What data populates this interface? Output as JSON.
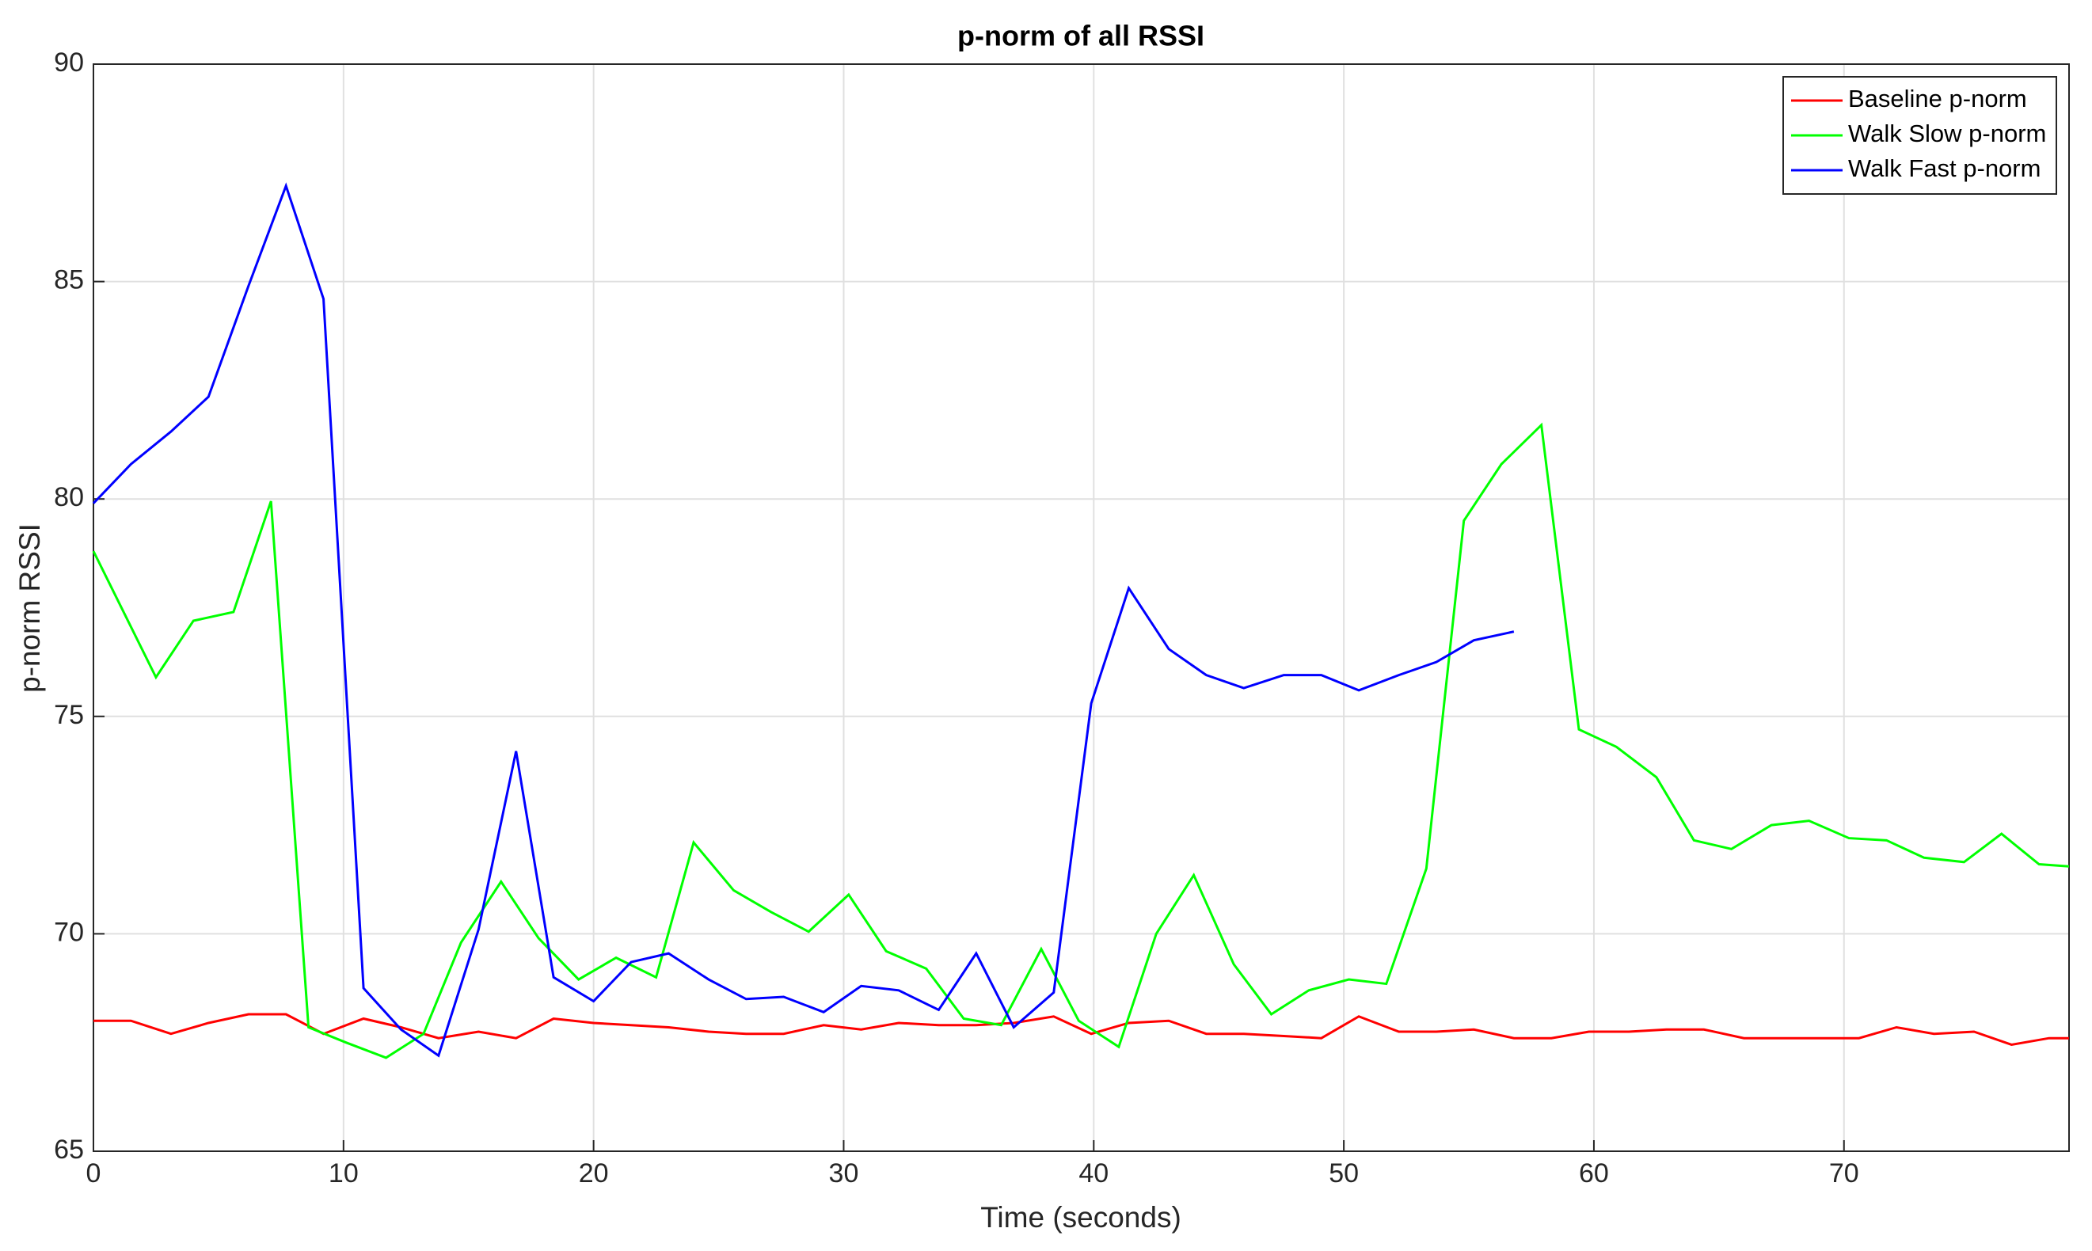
{
  "chart_data": {
    "type": "line",
    "title": "p-norm of all RSSI",
    "x_label": "Time (seconds)",
    "y_label": "p-norm RSSI",
    "xlim": [
      0,
      79
    ],
    "ylim": [
      65,
      90
    ],
    "xticks": [
      0,
      10,
      20,
      30,
      40,
      50,
      60,
      70
    ],
    "yticks": [
      65,
      70,
      75,
      80,
      85,
      90
    ],
    "grid": true,
    "legend": "top-right",
    "series": [
      {
        "name": "Baseline p-norm",
        "color": "#ff0000",
        "x": [
          0,
          1.5,
          3.1,
          4.6,
          6.2,
          7.7,
          9.2,
          10.8,
          12.3,
          13.8,
          15.4,
          16.9,
          18.4,
          20.0,
          21.5,
          23.0,
          24.6,
          26.1,
          27.6,
          29.2,
          30.7,
          32.2,
          33.8,
          35.3,
          36.8,
          38.4,
          39.9,
          41.4,
          43.0,
          44.5,
          46.0,
          47.6,
          49.1,
          50.6,
          52.2,
          53.7,
          55.2,
          56.8,
          58.3,
          59.8,
          61.4,
          62.9,
          64.4,
          66.0,
          67.5,
          69.0,
          70.6,
          72.1,
          73.6,
          75.2,
          76.7,
          78.2,
          79
        ],
        "values": [
          68.0,
          68.0,
          67.7,
          67.95,
          68.15,
          68.15,
          67.7,
          68.05,
          67.85,
          67.6,
          67.75,
          67.6,
          68.05,
          67.95,
          67.9,
          67.85,
          67.75,
          67.7,
          67.7,
          67.9,
          67.8,
          67.95,
          67.9,
          67.9,
          67.95,
          68.1,
          67.7,
          67.95,
          68.0,
          67.7,
          67.7,
          67.65,
          67.6,
          68.1,
          67.75,
          67.75,
          67.8,
          67.6,
          67.6,
          67.75,
          67.75,
          67.8,
          67.8,
          67.6,
          67.6,
          67.6,
          67.6,
          67.85,
          67.7,
          67.75,
          67.45,
          67.6,
          67.6
        ]
      },
      {
        "name": "Walk Slow p-norm",
        "color": "#00ff00",
        "x": [
          0,
          2.5,
          4.0,
          5.6,
          7.1,
          8.6,
          10.1,
          11.7,
          13.2,
          14.7,
          16.3,
          17.8,
          19.4,
          20.9,
          22.5,
          24.0,
          25.6,
          27.1,
          28.6,
          30.2,
          31.7,
          33.3,
          34.8,
          36.3,
          37.9,
          39.4,
          41.0,
          42.5,
          44.0,
          45.6,
          47.1,
          48.6,
          50.2,
          51.7,
          53.3,
          54.8,
          56.3,
          57.9,
          59.4,
          60.9,
          62.5,
          64.0,
          65.5,
          67.1,
          68.6,
          70.2,
          71.7,
          73.2,
          74.8,
          76.3,
          77.8,
          79
        ],
        "values": [
          78.8,
          75.9,
          77.2,
          77.4,
          79.95,
          67.85,
          67.5,
          67.15,
          67.7,
          69.8,
          71.2,
          69.9,
          68.95,
          69.45,
          69.0,
          72.1,
          71.0,
          70.5,
          70.05,
          70.9,
          69.6,
          69.2,
          68.05,
          67.9,
          69.65,
          68.0,
          67.4,
          70.0,
          71.35,
          69.3,
          68.15,
          68.7,
          68.95,
          68.85,
          71.5,
          79.5,
          80.8,
          81.7,
          74.7,
          74.3,
          73.6,
          72.15,
          71.95,
          72.5,
          72.6,
          72.2,
          72.15,
          71.75,
          71.65,
          72.3,
          71.6,
          71.55
        ]
      },
      {
        "name": "Walk Fast p-norm",
        "color": "#0000ff",
        "x": [
          0,
          1.5,
          3.1,
          4.6,
          6.2,
          7.7,
          9.2,
          10.8,
          12.3,
          13.8,
          15.4,
          16.9,
          18.4,
          20.0,
          21.5,
          23.0,
          24.6,
          26.1,
          27.6,
          29.2,
          30.7,
          32.2,
          33.8,
          35.3,
          36.8,
          38.4,
          39.9,
          41.4,
          43.0,
          44.5,
          46.0,
          47.6,
          49.1,
          50.6,
          52.2,
          53.7,
          55.2,
          56.8
        ],
        "values": [
          79.9,
          80.8,
          81.55,
          82.35,
          84.9,
          87.2,
          84.6,
          68.75,
          67.8,
          67.2,
          70.1,
          74.2,
          69.0,
          68.45,
          69.35,
          69.55,
          68.95,
          68.5,
          68.55,
          68.2,
          68.8,
          68.7,
          68.25,
          69.55,
          67.85,
          68.65,
          75.3,
          77.95,
          76.55,
          75.95,
          75.65,
          75.95,
          75.95,
          75.6,
          75.95,
          76.25,
          76.75,
          76.95
        ]
      }
    ]
  }
}
